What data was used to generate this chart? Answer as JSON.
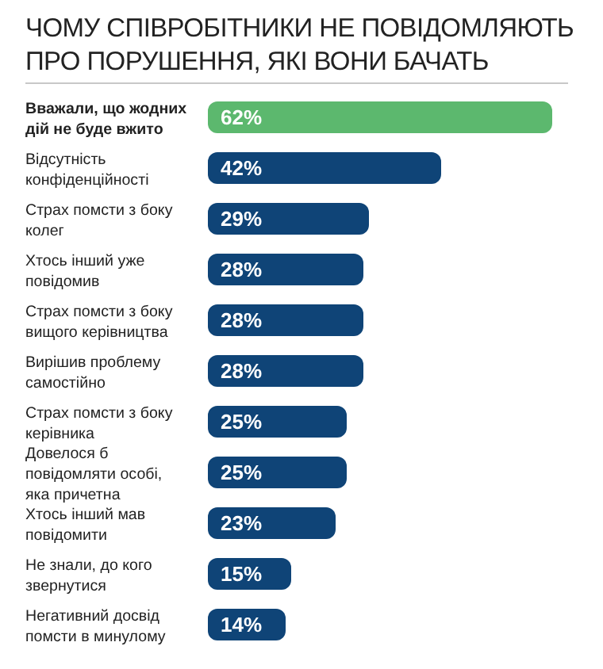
{
  "chart_data": {
    "type": "bar",
    "orientation": "horizontal",
    "title": "ЧОМУ СПІВРОБІТНИКИ НЕ ПОВІДОМЛЯЮТЬ ПРО ПОРУШЕННЯ, ЯКІ ВОНИ БАЧАТЬ",
    "categories": [
      "Вважали, що жодних дій не буде вжито",
      "Відсутність конфіденційності",
      "Страх помсти з боку колег",
      "Хтось інший уже повідомив",
      "Страх помсти з боку вищого керівництва",
      "Вирішив проблему самостійно",
      "Страх помсти з боку керівника",
      "Довелося б повідомляти особі, яка причетна",
      "Хтось інший мав повідомити",
      "Не знали, до кого звернутися",
      "Негативний досвід помсти в минулому"
    ],
    "values": [
      62,
      42,
      29,
      28,
      28,
      28,
      25,
      25,
      23,
      15,
      14
    ],
    "value_labels": [
      "62%",
      "42%",
      "29%",
      "28%",
      "28%",
      "28%",
      "25%",
      "25%",
      "23%",
      "15%",
      "14%"
    ],
    "colors": [
      "#5cb86e",
      "#0f4477",
      "#0f4477",
      "#0f4477",
      "#0f4477",
      "#0f4477",
      "#0f4477",
      "#0f4477",
      "#0f4477",
      "#0f4477",
      "#0f4477"
    ],
    "grid": false,
    "legend": false
  }
}
